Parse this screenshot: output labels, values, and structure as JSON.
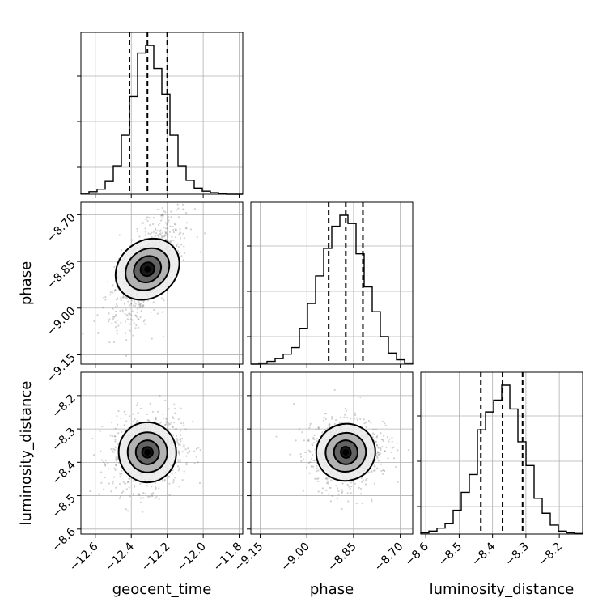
{
  "chart_data": {
    "type": "corner",
    "parameters": [
      "geocent_time",
      "phase",
      "luminosity_distance"
    ],
    "axis_labels": {
      "geocent_time": "geocent_time",
      "phase": "phase",
      "luminosity_distance": "luminosity_distance"
    },
    "ranges": {
      "geocent_time": [
        -12.68,
        -11.78
      ],
      "phase": [
        -9.18,
        -8.66
      ],
      "luminosity_distance": [
        -8.615,
        -8.13
      ]
    },
    "ticks": {
      "geocent_time": [
        -12.6,
        -12.4,
        -12.2,
        -12.0,
        -11.8
      ],
      "phase": [
        -9.15,
        -9.0,
        -8.85,
        -8.7
      ],
      "luminosity_distance": [
        -8.6,
        -8.5,
        -8.4,
        -8.3,
        -8.2
      ]
    },
    "tick_labels": {
      "geocent_time": [
        "−12.6",
        "−12.4",
        "−12.2",
        "−12.0",
        "−11.8"
      ],
      "phase": [
        "−9.15",
        "−9.00",
        "−8.85",
        "−8.70"
      ],
      "luminosity_distance": [
        "−8.6",
        "−8.5",
        "−8.4",
        "−8.3",
        "−8.2"
      ]
    },
    "quantiles": {
      "geocent_time": [
        -12.41,
        -12.31,
        -12.2
      ],
      "phase": [
        -8.93,
        -8.875,
        -8.82
      ],
      "luminosity_distance": [
        -8.435,
        -8.37,
        -8.31
      ]
    },
    "histograms": {
      "geocent_time": {
        "edges": [
          -12.68,
          -12.635,
          -12.59,
          -12.545,
          -12.5,
          -12.455,
          -12.41,
          -12.365,
          -12.32,
          -12.275,
          -12.23,
          -12.185,
          -12.14,
          -12.095,
          -12.05,
          -12.005,
          -11.96,
          -11.915,
          -11.87,
          -11.825,
          -11.78
        ],
        "counts": [
          2,
          5,
          10,
          25,
          55,
          115,
          190,
          275,
          290,
          245,
          195,
          115,
          55,
          27,
          12,
          6,
          3,
          1,
          0,
          0
        ]
      },
      "phase": {
        "edges": [
          -9.18,
          -9.154,
          -9.128,
          -9.102,
          -9.076,
          -9.05,
          -9.024,
          -8.998,
          -8.972,
          -8.946,
          -8.92,
          -8.894,
          -8.868,
          -8.842,
          -8.816,
          -8.79,
          -8.764,
          -8.738,
          -8.712,
          -8.686,
          -8.66
        ],
        "counts": [
          0,
          2,
          5,
          10,
          18,
          30,
          65,
          110,
          160,
          210,
          250,
          270,
          255,
          200,
          140,
          95,
          50,
          20,
          8,
          2
        ]
      },
      "luminosity_distance": {
        "edges": [
          -8.615,
          -8.5907,
          -8.5665,
          -8.5422,
          -8.518,
          -8.4937,
          -8.4695,
          -8.4452,
          -8.421,
          -8.3967,
          -8.3725,
          -8.3482,
          -8.324,
          -8.2997,
          -8.2755,
          -8.2512,
          -8.227,
          -8.2027,
          -8.1785,
          -8.1542,
          -8.13
        ],
        "counts": [
          2,
          5,
          10,
          18,
          40,
          70,
          100,
          175,
          205,
          225,
          250,
          210,
          155,
          115,
          60,
          35,
          15,
          5,
          2,
          1
        ]
      }
    },
    "pairs": [
      {
        "x": "geocent_time",
        "y": "phase",
        "center": [
          -12.31,
          -8.875
        ],
        "contours": [
          {
            "rx": 0.04,
            "ry": 0.021,
            "angle": 0.68
          },
          {
            "rx": 0.08,
            "ry": 0.04,
            "angle": 0.68
          },
          {
            "rx": 0.13,
            "ry": 0.062,
            "angle": 0.68
          },
          {
            "rx": 0.19,
            "ry": 0.09,
            "angle": 0.68
          }
        ],
        "samples_spread": [
          0.16,
          0.06
        ]
      },
      {
        "x": "geocent_time",
        "y": "luminosity_distance",
        "center": [
          -12.31,
          -8.37
        ],
        "contours": [
          {
            "rx": 0.03,
            "ry": 0.016,
            "angle": 0.1
          },
          {
            "rx": 0.065,
            "ry": 0.036,
            "angle": 0.1
          },
          {
            "rx": 0.11,
            "ry": 0.06,
            "angle": 0.1
          },
          {
            "rx": 0.16,
            "ry": 0.09,
            "angle": 0.1
          }
        ],
        "samples_spread": [
          0.12,
          0.07
        ]
      },
      {
        "x": "phase",
        "y": "luminosity_distance",
        "center": [
          -8.875,
          -8.37
        ],
        "contours": [
          {
            "rx": 0.016,
            "ry": 0.017,
            "angle": 0.3
          },
          {
            "rx": 0.038,
            "ry": 0.036,
            "angle": 0.3
          },
          {
            "rx": 0.065,
            "ry": 0.058,
            "angle": 0.3
          },
          {
            "rx": 0.095,
            "ry": 0.085,
            "angle": 0.3
          }
        ],
        "samples_spread": [
          0.07,
          0.065
        ]
      }
    ],
    "grid": true,
    "colors": {
      "line": "#000000",
      "grid": "#b0b0b0",
      "samples": "#7a7a7a",
      "density": "#000000"
    }
  }
}
